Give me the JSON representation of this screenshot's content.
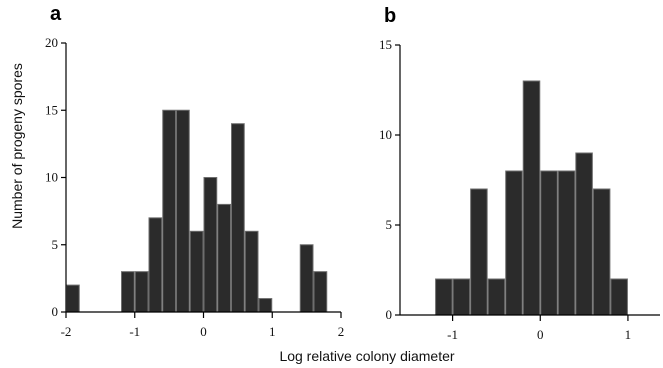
{
  "chart_data": [
    {
      "type": "bar",
      "panel_label": "a",
      "ylabel": "Number of progeny spores",
      "xlim": [
        -2,
        2
      ],
      "ylim": [
        0,
        20
      ],
      "xticks": [
        -2,
        -1,
        0,
        1,
        2
      ],
      "yticks": [
        0,
        5,
        10,
        15,
        20
      ],
      "bin_width": 0.2,
      "bins": [
        {
          "x": -1.9,
          "value": 2
        },
        {
          "x": -1.1,
          "value": 3
        },
        {
          "x": -0.9,
          "value": 3
        },
        {
          "x": -0.7,
          "value": 7
        },
        {
          "x": -0.5,
          "value": 15
        },
        {
          "x": -0.3,
          "value": 15
        },
        {
          "x": -0.1,
          "value": 6
        },
        {
          "x": 0.1,
          "value": 10
        },
        {
          "x": 0.3,
          "value": 8
        },
        {
          "x": 0.5,
          "value": 14
        },
        {
          "x": 0.7,
          "value": 6
        },
        {
          "x": 0.9,
          "value": 1
        },
        {
          "x": 1.5,
          "value": 5
        },
        {
          "x": 1.7,
          "value": 3
        }
      ]
    },
    {
      "type": "bar",
      "panel_label": "b",
      "xlim": [
        -1.6,
        1.4
      ],
      "ylim": [
        0,
        15
      ],
      "xticks": [
        -1,
        0,
        1
      ],
      "yticks": [
        0,
        5,
        10,
        15
      ],
      "bin_width": 0.2,
      "bins": [
        {
          "x": -1.1,
          "value": 2
        },
        {
          "x": -0.9,
          "value": 2
        },
        {
          "x": -0.7,
          "value": 7
        },
        {
          "x": -0.5,
          "value": 2
        },
        {
          "x": -0.3,
          "value": 8
        },
        {
          "x": -0.1,
          "value": 13
        },
        {
          "x": 0.1,
          "value": 8
        },
        {
          "x": 0.3,
          "value": 8
        },
        {
          "x": 0.5,
          "value": 9
        },
        {
          "x": 0.7,
          "value": 7
        },
        {
          "x": 0.9,
          "value": 2
        }
      ]
    }
  ],
  "shared_xlabel": "Log relative colony diameter"
}
